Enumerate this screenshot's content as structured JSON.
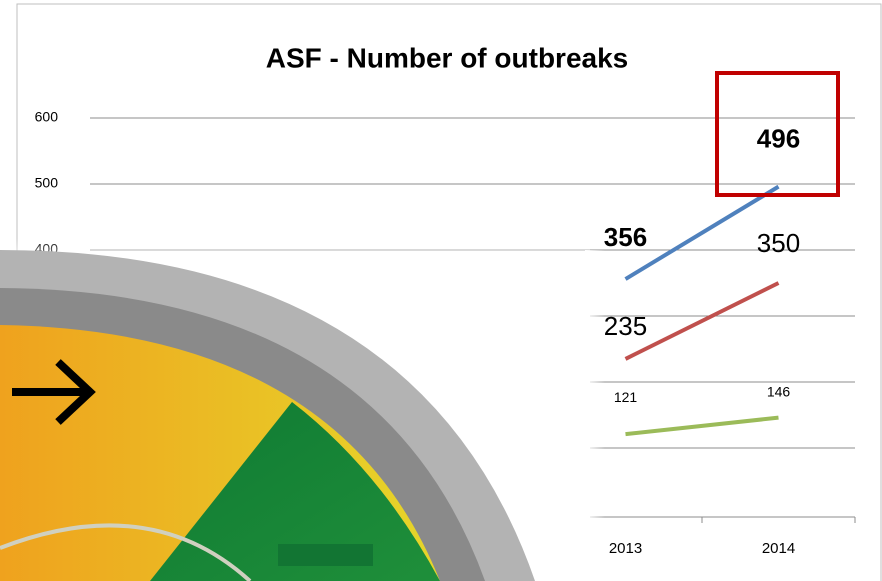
{
  "chart_data": {
    "type": "line",
    "title": "ASF - Number of outbreaks",
    "categories": [
      null,
      null,
      null,
      "2013",
      "2014"
    ],
    "series": [
      {
        "name": null,
        "color": "#4f81bd",
        "values": [
          null,
          null,
          null,
          356,
          496
        ]
      },
      {
        "name": null,
        "color": "#c0504d",
        "values": [
          null,
          null,
          null,
          235,
          350
        ]
      },
      {
        "name": null,
        "color": "#9bbb59",
        "values": [
          null,
          null,
          null,
          121,
          146
        ]
      }
    ],
    "ylim": [
      0,
      600
    ],
    "yticks": [
      0,
      100,
      200,
      300,
      400,
      500,
      600
    ],
    "grid": true
  }
}
